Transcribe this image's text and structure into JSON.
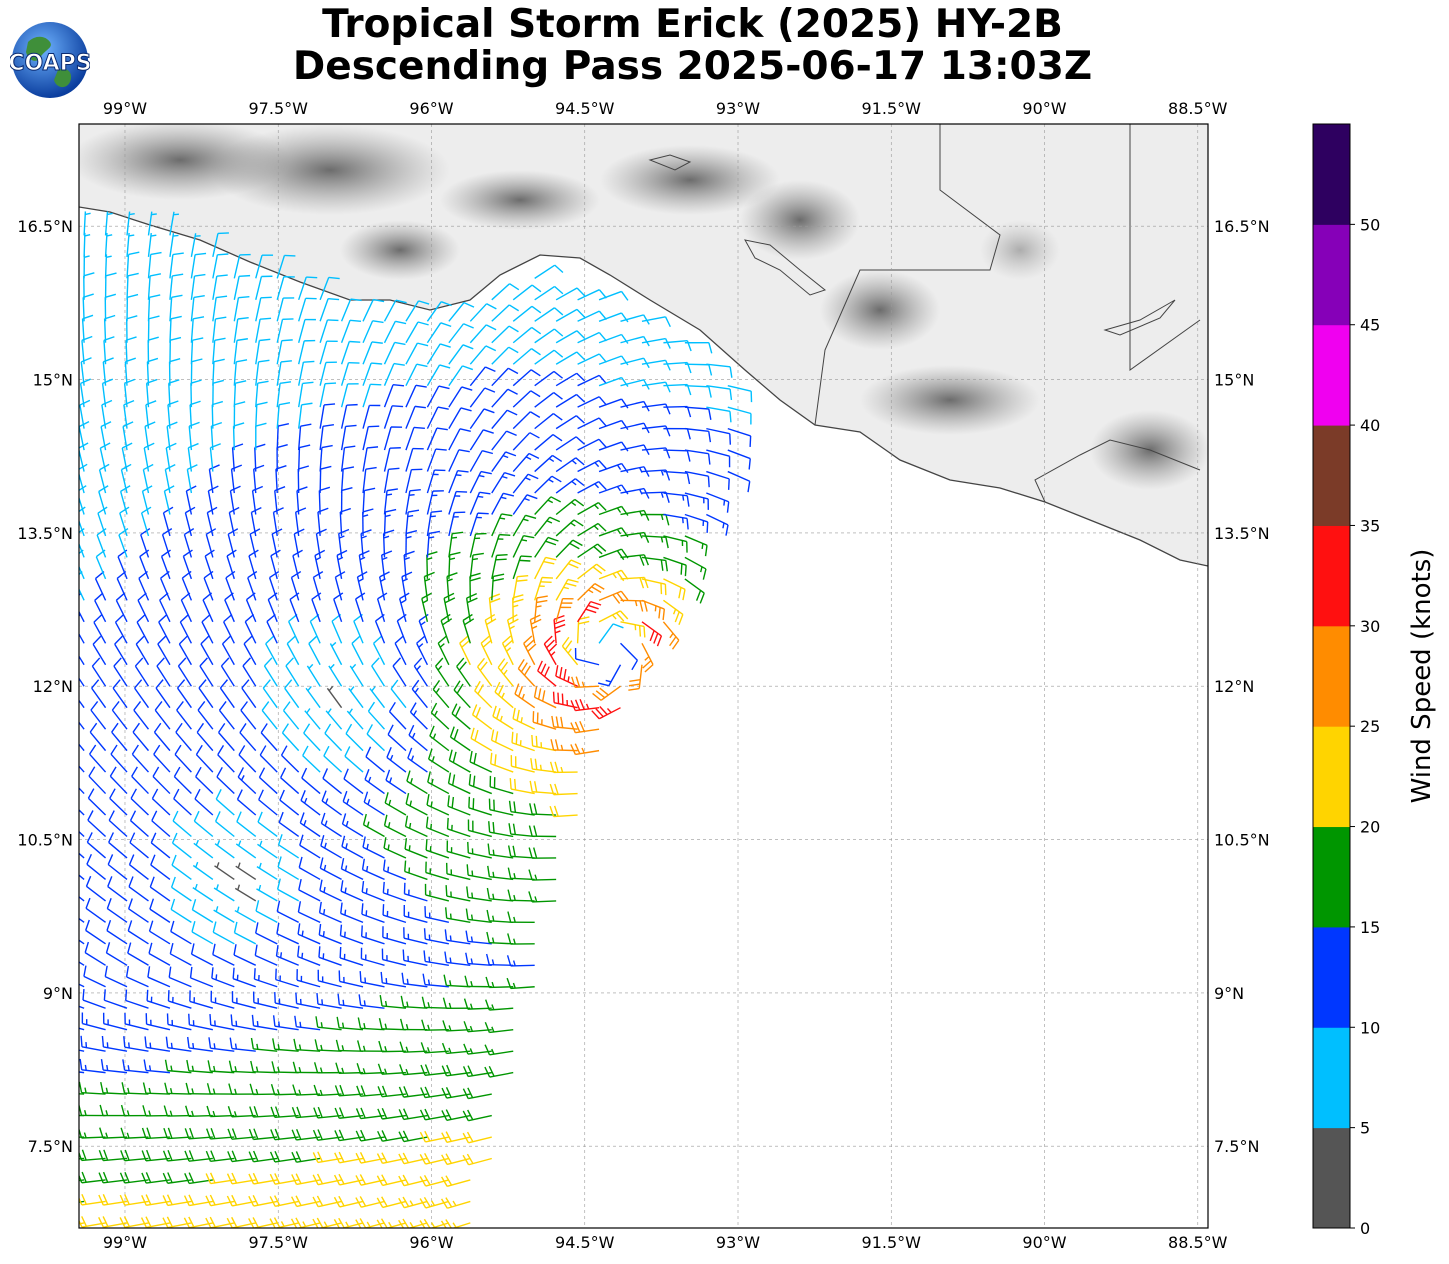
{
  "title": {
    "line1": "Tropical Storm Erick (2025) HY-2B",
    "line2": "Descending Pass 2025-06-17 13:03Z"
  },
  "logo": {
    "text": "COAPS",
    "icon": "globe-icon"
  },
  "map": {
    "lon_range": [
      -99.45,
      -88.4
    ],
    "lat_range": [
      6.7,
      17.5
    ],
    "lon_ticks": [
      {
        "value": -99,
        "label": "99°W"
      },
      {
        "value": -97.5,
        "label": "97.5°W"
      },
      {
        "value": -96,
        "label": "96°W"
      },
      {
        "value": -94.5,
        "label": "94.5°W"
      },
      {
        "value": -93,
        "label": "93°W"
      },
      {
        "value": -91.5,
        "label": "91.5°W"
      },
      {
        "value": -90,
        "label": "90°W"
      },
      {
        "value": -88.5,
        "label": "88.5°W"
      }
    ],
    "lat_ticks": [
      {
        "value": 16.5,
        "label": "16.5°N"
      },
      {
        "value": 15,
        "label": "15°N"
      },
      {
        "value": 13.5,
        "label": "13.5°N"
      },
      {
        "value": 12,
        "label": "12°N"
      },
      {
        "value": 10.5,
        "label": "10.5°N"
      },
      {
        "value": 9,
        "label": "9°N"
      },
      {
        "value": 7.5,
        "label": "7.5°N"
      }
    ],
    "grid": true,
    "storm_center": {
      "lon": -94.3,
      "lat": 12.3
    },
    "light_wind_center": {
      "lon": -96.8,
      "lat": 11.8
    }
  },
  "colorbar": {
    "label": "Wind Speed (knots)",
    "ticks": [
      "0",
      "5",
      "10",
      "15",
      "20",
      "25",
      "30",
      "35",
      "40",
      "45",
      "50"
    ],
    "colors": [
      "#555555",
      "#00bfff",
      "#0037ff",
      "#009600",
      "#ffd400",
      "#ff8c00",
      "#ff1010",
      "#7b3b28",
      "#f000f0",
      "#8600b8",
      "#2e0060"
    ]
  }
}
